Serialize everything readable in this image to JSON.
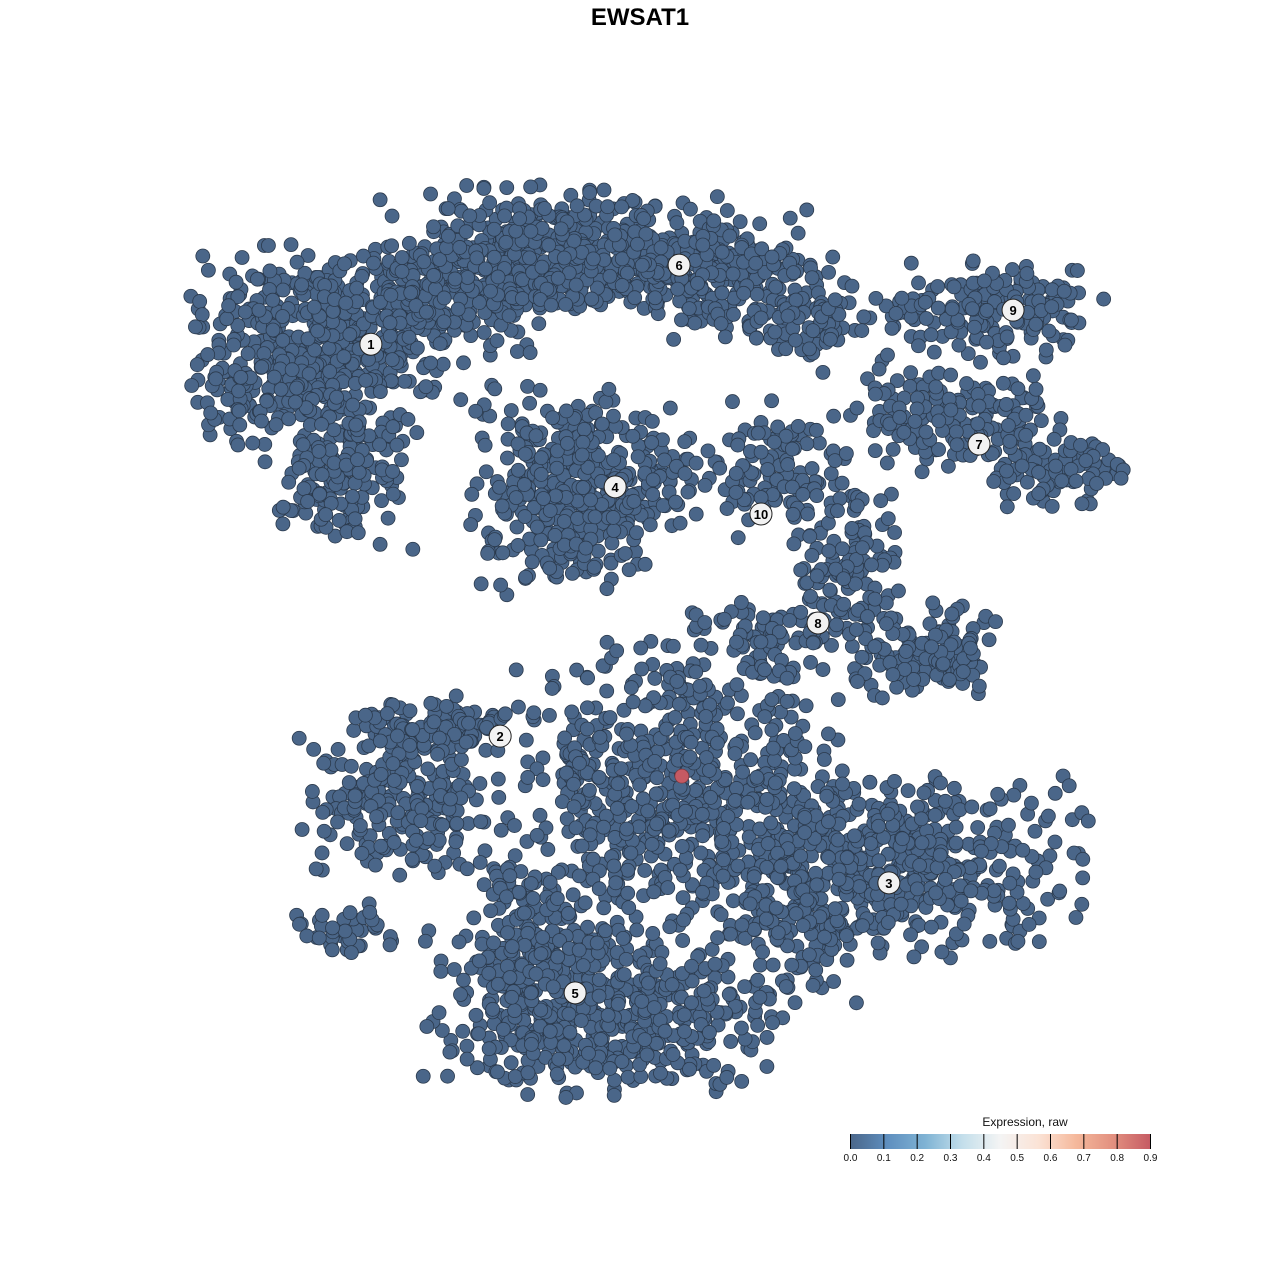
{
  "chart_data": {
    "type": "scatter",
    "title": "EWSAT1",
    "xlabel": "",
    "ylabel": "",
    "axes_visible": false,
    "grid": false,
    "point_color_default": "#4a6689",
    "point_edge_color": "#2b3a4d",
    "cluster_labels": [
      {
        "label": "1",
        "x": -5.85,
        "y": 6.43
      },
      {
        "label": "2",
        "x": -3.04,
        "y": -2.09
      },
      {
        "label": "3",
        "x": 5.41,
        "y": -5.28
      },
      {
        "label": "4",
        "x": -0.54,
        "y": 3.33
      },
      {
        "label": "5",
        "x": -1.41,
        "y": -7.67
      },
      {
        "label": "6",
        "x": 0.85,
        "y": 8.15
      },
      {
        "label": "7",
        "x": 7.37,
        "y": 4.26
      },
      {
        "label": "8",
        "x": 3.87,
        "y": 0.37
      },
      {
        "label": "9",
        "x": 8.11,
        "y": 7.17
      },
      {
        "label": "10",
        "x": 2.63,
        "y": 2.74
      }
    ],
    "baseline_expression": 0.0,
    "highlighted_points": [
      {
        "x": 0.91,
        "y": -2.96,
        "expression": 0.9,
        "color": "#c55a63"
      }
    ],
    "legend": {
      "title": "Expression, raw",
      "placement": "bottom-right",
      "range": [
        0.0,
        0.9
      ],
      "ticks": [
        "0.0",
        "0.1",
        "0.2",
        "0.3",
        "0.4",
        "0.5",
        "0.6",
        "0.7",
        "0.8",
        "0.9"
      ],
      "colors": [
        "#4a6689",
        "#5f8fbf",
        "#7fb3d4",
        "#c4dfeb",
        "#f4f4f4",
        "#fbe3d6",
        "#f5b99c",
        "#e28f7f",
        "#c55a63"
      ]
    }
  }
}
